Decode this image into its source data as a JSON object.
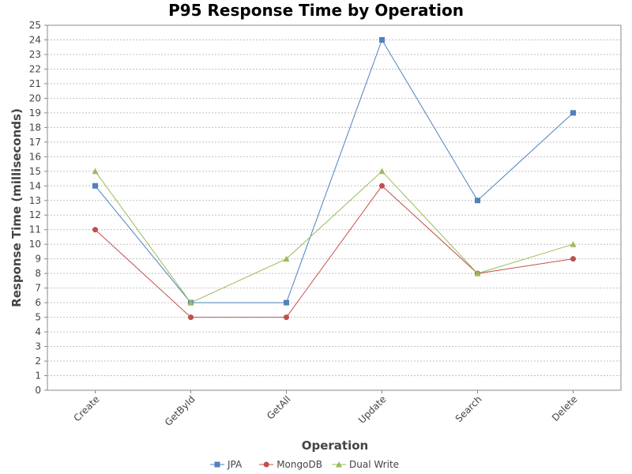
{
  "chart_data": {
    "type": "line",
    "title": "P95 Response Time by Operation",
    "xlabel": "Operation",
    "ylabel": "Response Time (milliseconds)",
    "categories": [
      "Create",
      "GetById",
      "GetAll",
      "Update",
      "Search",
      "Delete"
    ],
    "ylim": [
      0,
      25
    ],
    "yticks": [
      0,
      1,
      2,
      3,
      4,
      5,
      6,
      7,
      8,
      9,
      10,
      11,
      12,
      13,
      14,
      15,
      16,
      17,
      18,
      19,
      20,
      21,
      22,
      23,
      24,
      25
    ],
    "grid": true,
    "legend_position": "bottom",
    "series": [
      {
        "name": "JPA",
        "color": "#4f81bd",
        "marker": "square",
        "values": [
          14,
          6,
          6,
          24,
          13,
          19
        ]
      },
      {
        "name": "MongoDB",
        "color": "#c0504d",
        "marker": "circle",
        "values": [
          11,
          5,
          5,
          14,
          8,
          9
        ]
      },
      {
        "name": "Dual Write",
        "color": "#9bbb59",
        "marker": "triangle",
        "values": [
          15,
          6,
          9,
          15,
          8,
          10
        ]
      }
    ]
  }
}
